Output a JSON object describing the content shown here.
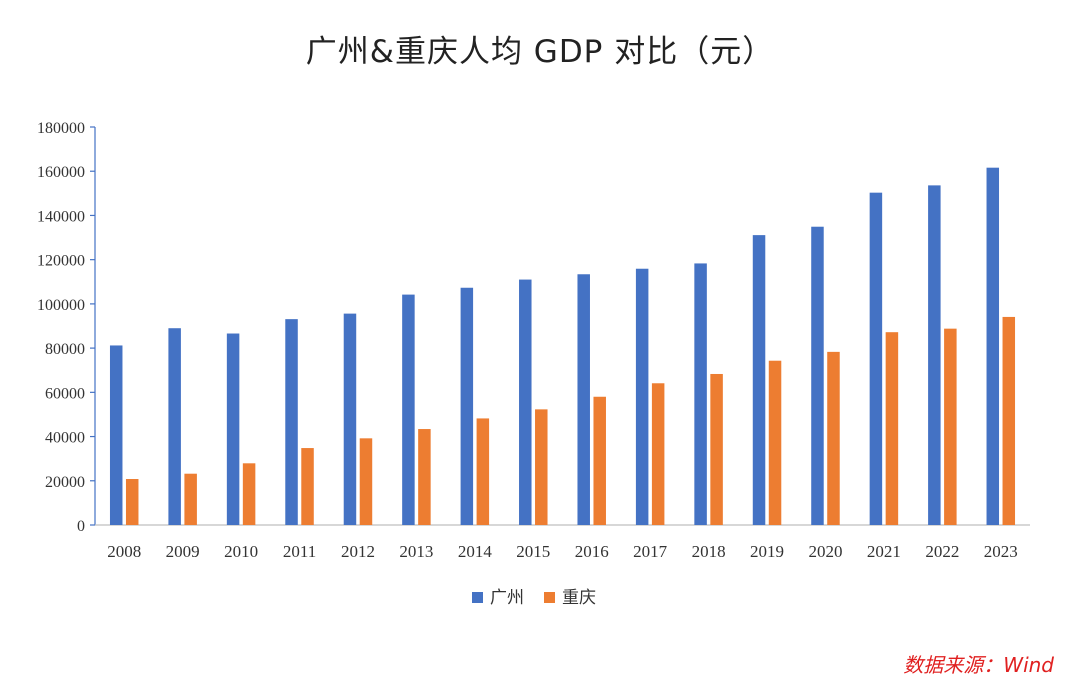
{
  "chart_data": {
    "type": "bar",
    "title": "广州&重庆人均 GDP 对比（元）",
    "xlabel": "",
    "ylabel": "",
    "ylim": [
      0,
      180000
    ],
    "yticks": [
      "0",
      "20000",
      "40000",
      "60000",
      "80000",
      "100000",
      "120000",
      "140000",
      "160000",
      "180000"
    ],
    "categories": [
      "2008",
      "2009",
      "2010",
      "2011",
      "2012",
      "2013",
      "2014",
      "2015",
      "2016",
      "2017",
      "2018",
      "2019",
      "2020",
      "2021",
      "2022",
      "2023"
    ],
    "series": [
      {
        "name": "广州",
        "color": "#4472C4",
        "values": [
          81200,
          89000,
          86600,
          93100,
          95600,
          104200,
          107300,
          111000,
          113400,
          115900,
          118300,
          131100,
          134900,
          150300,
          153600,
          161600
        ]
      },
      {
        "name": "重庆",
        "color": "#ED7D31",
        "values": [
          20800,
          23200,
          27900,
          34800,
          39200,
          43400,
          48200,
          52300,
          58000,
          64100,
          68300,
          74300,
          78300,
          87200,
          88800,
          94100
        ]
      }
    ],
    "legend_position": "bottom"
  },
  "source_note": "数据来源：Wind"
}
